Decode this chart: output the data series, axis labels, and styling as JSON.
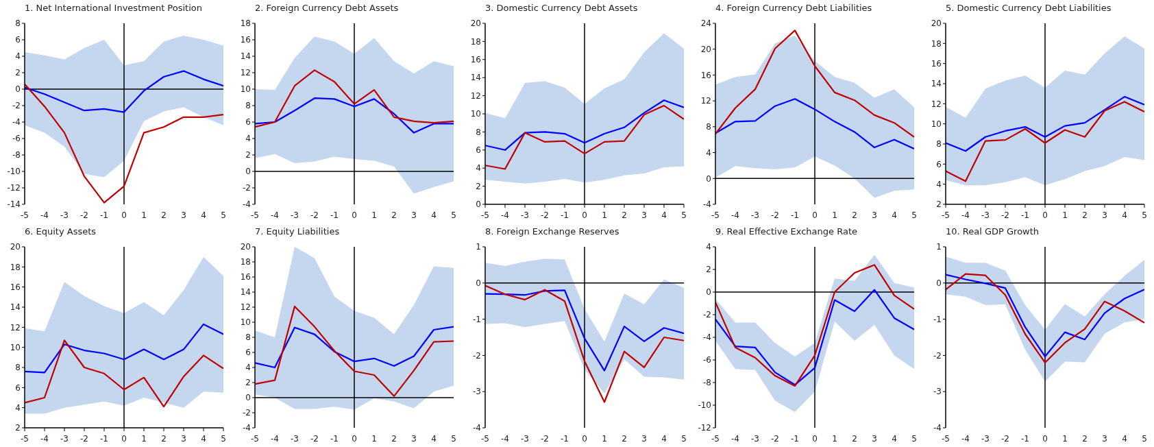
{
  "chart_data": [
    {
      "type": "line",
      "title": "1. Net International Investment Position",
      "x": [
        -5,
        -4,
        -3,
        -2,
        -1,
        0,
        1,
        2,
        3,
        4,
        5
      ],
      "xlim": [
        -5,
        5
      ],
      "xticks": [
        -5,
        -4,
        -3,
        -2,
        -1,
        0,
        1,
        2,
        3,
        4,
        5
      ],
      "ylim": [
        -14,
        8
      ],
      "yticks": [
        -14,
        -12,
        -10,
        -8,
        -6,
        -4,
        -2,
        0,
        2,
        4,
        6,
        8
      ],
      "grid": false,
      "marker": "none",
      "series": [
        {
          "color": "#0000ff",
          "values": [
            0.2,
            -0.6,
            -1.6,
            -2.6,
            -2.4,
            -2.8,
            -0.2,
            1.5,
            2.2,
            1.2,
            0.4
          ],
          "lower": [
            -4.4,
            -5.3,
            -7.0,
            -10.3,
            -10.7,
            -8.7,
            -3.9,
            -2.7,
            -2.2,
            -3.4,
            -4.4
          ],
          "upper": [
            4.5,
            4.1,
            3.6,
            5.0,
            6.0,
            2.9,
            3.4,
            5.8,
            6.5,
            6.0,
            5.3
          ]
        },
        {
          "color": "#c00000",
          "values": [
            0.6,
            -2.1,
            -5.3,
            -10.6,
            -13.8,
            -11.8,
            -5.3,
            -4.6,
            -3.4,
            -3.4,
            -3.1
          ]
        }
      ],
      "ref_lines": [
        {
          "axis": "x",
          "value": 0,
          "color": "#000000"
        },
        {
          "axis": "y",
          "value": 0,
          "color": "#000000"
        }
      ]
    },
    {
      "type": "line",
      "title": "2. Foreign Currency Debt Assets",
      "x": [
        -5,
        -4,
        -3,
        -2,
        -1,
        0,
        1,
        2,
        3,
        4,
        5
      ],
      "xlim": [
        -5,
        5
      ],
      "xticks": [
        -5,
        -4,
        -3,
        -2,
        -1,
        0,
        1,
        2,
        3,
        4,
        5
      ],
      "ylim": [
        -4,
        18
      ],
      "yticks": [
        -4,
        -2,
        0,
        2,
        4,
        6,
        8,
        10,
        12,
        14,
        16,
        18
      ],
      "grid": false,
      "marker": "none",
      "series": [
        {
          "color": "#0000ff",
          "values": [
            5.8,
            6.0,
            7.4,
            8.9,
            8.8,
            7.9,
            8.8,
            7.0,
            4.7,
            5.8,
            5.8
          ],
          "lower": [
            1.6,
            2.1,
            1.0,
            1.2,
            1.8,
            1.5,
            1.3,
            0.6,
            -2.7,
            -1.9,
            -1.2
          ],
          "upper": [
            10.0,
            9.9,
            13.8,
            16.4,
            15.8,
            14.3,
            16.2,
            13.4,
            11.9,
            13.4,
            12.8
          ]
        },
        {
          "color": "#c00000",
          "values": [
            5.4,
            6.0,
            10.4,
            12.3,
            10.9,
            8.2,
            9.9,
            6.6,
            6.1,
            5.9,
            6.1
          ]
        }
      ],
      "ref_lines": [
        {
          "axis": "x",
          "value": 0,
          "color": "#000000"
        },
        {
          "axis": "y",
          "value": 0,
          "color": "#000000"
        }
      ]
    },
    {
      "type": "line",
      "title": "3. Domestic Currency Debt Assets",
      "x": [
        -5,
        -4,
        -3,
        -2,
        -1,
        0,
        1,
        2,
        3,
        4,
        5
      ],
      "xlim": [
        -5,
        5
      ],
      "xticks": [
        -5,
        -4,
        -3,
        -2,
        -1,
        0,
        1,
        2,
        3,
        4,
        5
      ],
      "ylim": [
        0,
        20
      ],
      "yticks": [
        0,
        2,
        4,
        6,
        8,
        10,
        12,
        14,
        16,
        18,
        20
      ],
      "grid": false,
      "marker": "none",
      "series": [
        {
          "color": "#0000ff",
          "values": [
            6.5,
            6.0,
            7.9,
            8.0,
            7.8,
            6.8,
            7.8,
            8.5,
            10.1,
            11.5,
            10.7
          ],
          "lower": [
            2.7,
            2.5,
            2.3,
            2.5,
            2.8,
            2.4,
            2.7,
            3.2,
            3.4,
            4.1,
            4.2
          ],
          "upper": [
            10.1,
            9.5,
            13.4,
            13.6,
            12.9,
            11.1,
            12.8,
            13.8,
            16.8,
            18.9,
            17.2
          ]
        },
        {
          "color": "#c00000",
          "values": [
            4.3,
            3.9,
            7.9,
            6.9,
            7.0,
            5.6,
            6.9,
            7.0,
            9.9,
            10.9,
            9.4
          ]
        }
      ],
      "ref_lines": [
        {
          "axis": "x",
          "value": 0,
          "color": "#000000"
        }
      ]
    },
    {
      "type": "line",
      "title": "4. Foreign Currency Debt Liabilities",
      "x": [
        -5,
        -4,
        -3,
        -2,
        -1,
        0,
        1,
        2,
        3,
        4,
        5
      ],
      "xlim": [
        -5,
        5
      ],
      "xticks": [
        -5,
        -4,
        -3,
        -2,
        -1,
        0,
        1,
        2,
        3,
        4,
        5
      ],
      "ylim": [
        -4,
        24
      ],
      "yticks": [
        -4,
        0,
        4,
        8,
        12,
        16,
        20,
        24
      ],
      "grid": false,
      "marker": "none",
      "series": [
        {
          "color": "#0000ff",
          "values": [
            7.0,
            8.8,
            8.9,
            11.2,
            12.3,
            10.7,
            8.8,
            7.2,
            4.8,
            6.0,
            4.6
          ],
          "lower": [
            0.1,
            1.9,
            1.6,
            1.4,
            1.7,
            3.4,
            2.0,
            0.0,
            -3.0,
            -1.9,
            -1.7
          ],
          "upper": [
            14.5,
            15.7,
            16.1,
            20.9,
            22.1,
            18.2,
            15.7,
            14.8,
            12.5,
            13.8,
            11.0
          ]
        },
        {
          "color": "#c00000",
          "values": [
            6.9,
            10.9,
            13.8,
            20.1,
            22.9,
            17.4,
            13.3,
            12.1,
            9.8,
            8.6,
            6.4
          ]
        }
      ],
      "ref_lines": [
        {
          "axis": "x",
          "value": 0,
          "color": "#000000"
        },
        {
          "axis": "y",
          "value": 0,
          "color": "#000000"
        }
      ]
    },
    {
      "type": "line",
      "title": "5. Domestic Currency Debt Liabilities",
      "x": [
        -5,
        -4,
        -3,
        -2,
        -1,
        0,
        1,
        2,
        3,
        4,
        5
      ],
      "xlim": [
        -5,
        5
      ],
      "xticks": [
        -5,
        -4,
        -3,
        -2,
        -1,
        0,
        1,
        2,
        3,
        4,
        5
      ],
      "ylim": [
        2,
        20
      ],
      "yticks": [
        2,
        4,
        6,
        8,
        10,
        12,
        14,
        16,
        18,
        20
      ],
      "grid": false,
      "marker": "none",
      "series": [
        {
          "color": "#0000ff",
          "values": [
            8.1,
            7.3,
            8.7,
            9.3,
            9.7,
            8.7,
            9.8,
            10.1,
            11.4,
            12.7,
            11.9
          ],
          "lower": [
            4.4,
            3.9,
            3.9,
            4.2,
            4.7,
            3.9,
            4.5,
            5.3,
            5.8,
            6.7,
            6.4
          ],
          "upper": [
            11.7,
            10.6,
            13.5,
            14.3,
            14.8,
            13.6,
            15.3,
            14.9,
            17.0,
            18.7,
            17.5
          ]
        },
        {
          "color": "#c00000",
          "values": [
            5.3,
            4.3,
            8.3,
            8.4,
            9.5,
            8.1,
            9.4,
            8.7,
            11.3,
            12.2,
            11.2
          ]
        }
      ],
      "ref_lines": [
        {
          "axis": "x",
          "value": 0,
          "color": "#000000"
        }
      ]
    },
    {
      "type": "line",
      "title": "6. Equity Assets",
      "x": [
        -5,
        -4,
        -3,
        -2,
        -1,
        0,
        1,
        2,
        3,
        4,
        5
      ],
      "xlim": [
        -5,
        5
      ],
      "xticks": [
        -5,
        -4,
        -3,
        -2,
        -1,
        0,
        1,
        2,
        3,
        4,
        5
      ],
      "ylim": [
        2,
        20
      ],
      "yticks": [
        2,
        4,
        6,
        8,
        10,
        12,
        14,
        16,
        18,
        20
      ],
      "grid": false,
      "marker": "none",
      "series": [
        {
          "color": "#0000ff",
          "values": [
            7.6,
            7.5,
            10.3,
            9.7,
            9.4,
            8.8,
            9.8,
            8.8,
            9.8,
            12.3,
            11.3
          ],
          "lower": [
            3.4,
            3.4,
            4.0,
            4.3,
            4.6,
            4.2,
            5.0,
            4.5,
            4.0,
            5.6,
            5.5
          ],
          "upper": [
            11.9,
            11.6,
            16.5,
            15.1,
            14.1,
            13.4,
            14.5,
            13.2,
            15.7,
            19.0,
            17.1
          ]
        },
        {
          "color": "#c00000",
          "values": [
            4.5,
            5.0,
            10.7,
            8.0,
            7.4,
            5.8,
            7.0,
            4.1,
            7.1,
            9.2,
            7.9
          ]
        }
      ],
      "ref_lines": [
        {
          "axis": "x",
          "value": 0,
          "color": "#000000"
        }
      ]
    },
    {
      "type": "line",
      "title": "7. Equity Liabilities",
      "x": [
        -5,
        -4,
        -3,
        -2,
        -1,
        0,
        1,
        2,
        3,
        4,
        5
      ],
      "xlim": [
        -5,
        5
      ],
      "xticks": [
        -5,
        -4,
        -3,
        -2,
        -1,
        0,
        1,
        2,
        3,
        4,
        5
      ],
      "ylim": [
        -4,
        20
      ],
      "yticks": [
        -4,
        -2,
        0,
        2,
        4,
        6,
        8,
        10,
        12,
        14,
        16,
        18,
        20
      ],
      "grid": false,
      "marker": "none",
      "series": [
        {
          "color": "#0000ff",
          "values": [
            4.6,
            4.0,
            9.3,
            8.4,
            6.1,
            4.8,
            5.2,
            4.2,
            5.5,
            9.0,
            9.4
          ],
          "lower": [
            0.4,
            0.0,
            -1.5,
            -1.5,
            -1.2,
            -1.6,
            -0.1,
            -0.5,
            -1.4,
            0.8,
            1.6
          ],
          "upper": [
            8.9,
            8.0,
            20.0,
            18.5,
            13.4,
            11.5,
            10.6,
            8.4,
            12.3,
            17.4,
            17.2
          ]
        },
        {
          "color": "#c00000",
          "values": [
            1.8,
            2.3,
            12.1,
            9.4,
            6.2,
            3.5,
            3.0,
            0.2,
            3.6,
            7.4,
            7.5
          ]
        }
      ],
      "ref_lines": [
        {
          "axis": "x",
          "value": 0,
          "color": "#000000"
        },
        {
          "axis": "y",
          "value": 0,
          "color": "#000000"
        }
      ]
    },
    {
      "type": "line",
      "title": "8. Foreign Exchange Reserves",
      "x": [
        -5,
        -4,
        -3,
        -2,
        -1,
        0,
        1,
        2,
        3,
        4,
        5
      ],
      "xlim": [
        -5,
        5
      ],
      "xticks": [
        -5,
        -4,
        -3,
        -2,
        -1,
        0,
        1,
        2,
        3,
        4,
        5
      ],
      "ylim": [
        -4,
        1
      ],
      "yticks": [
        -4,
        -3,
        -2,
        -1,
        0,
        1
      ],
      "grid": false,
      "marker": "none",
      "series": [
        {
          "color": "#0000ff",
          "values": [
            -0.3,
            -0.31,
            -0.33,
            -0.22,
            -0.2,
            -1.53,
            -2.42,
            -1.2,
            -1.61,
            -1.24,
            -1.39
          ],
          "lower": [
            -1.13,
            -1.11,
            -1.22,
            -1.13,
            -1.05,
            -2.39,
            -3.05,
            -2.11,
            -2.59,
            -2.61,
            -2.67
          ],
          "upper": [
            0.56,
            0.47,
            0.59,
            0.67,
            0.65,
            -0.72,
            -1.62,
            -0.29,
            -0.59,
            0.1,
            -0.13
          ]
        },
        {
          "color": "#c00000",
          "values": [
            -0.07,
            -0.31,
            -0.46,
            -0.19,
            -0.5,
            -2.16,
            -3.29,
            -1.89,
            -2.33,
            -1.5,
            -1.59
          ]
        }
      ],
      "ref_lines": [
        {
          "axis": "x",
          "value": 0,
          "color": "#000000"
        },
        {
          "axis": "y",
          "value": 0,
          "color": "#000000"
        }
      ]
    },
    {
      "type": "line",
      "title": "9. Real Effective Exchange Rate",
      "x": [
        -5,
        -4,
        -3,
        -2,
        -1,
        0,
        1,
        2,
        3,
        4,
        5
      ],
      "xlim": [
        -5,
        5
      ],
      "xticks": [
        -5,
        -4,
        -3,
        -2,
        -1,
        0,
        1,
        2,
        3,
        4,
        5
      ],
      "ylim": [
        -12,
        4
      ],
      "yticks": [
        -12,
        -10,
        -8,
        -6,
        -4,
        -2,
        0,
        2,
        4
      ],
      "grid": false,
      "marker": "none",
      "series": [
        {
          "color": "#0000ff",
          "values": [
            -2.4,
            -4.8,
            -4.9,
            -7.1,
            -8.2,
            -6.7,
            -0.7,
            -1.7,
            0.2,
            -2.3,
            -3.3
          ],
          "lower": [
            -4.3,
            -6.8,
            -6.9,
            -9.6,
            -10.6,
            -8.8,
            -2.6,
            -4.3,
            -2.9,
            -5.6,
            -6.8
          ],
          "upper": [
            -0.6,
            -2.7,
            -2.7,
            -4.5,
            -5.7,
            -4.5,
            1.2,
            1.0,
            3.3,
            0.8,
            0.4
          ]
        },
        {
          "color": "#c00000",
          "values": [
            -0.9,
            -4.9,
            -5.8,
            -7.4,
            -8.3,
            -5.6,
            0.0,
            1.7,
            2.4,
            -0.3,
            -1.5
          ]
        }
      ],
      "ref_lines": [
        {
          "axis": "x",
          "value": 0,
          "color": "#000000"
        },
        {
          "axis": "y",
          "value": 0,
          "color": "#000000"
        }
      ]
    },
    {
      "type": "line",
      "title": "10. Real GDP Growth",
      "x": [
        -5,
        -4,
        -3,
        -2,
        -1,
        0,
        1,
        2,
        3,
        4,
        5
      ],
      "xlim": [
        -5,
        5
      ],
      "xticks": [
        -5,
        -4,
        -3,
        -2,
        -1,
        0,
        1,
        2,
        3,
        4,
        5
      ],
      "ylim": [
        -4,
        1
      ],
      "yticks": [
        -4,
        -3,
        -2,
        -1,
        0,
        1
      ],
      "grid": false,
      "marker": "none",
      "series": [
        {
          "color": "#0000ff",
          "values": [
            0.23,
            0.1,
            -0.01,
            -0.14,
            -1.22,
            -2.03,
            -1.36,
            -1.56,
            -0.83,
            -0.43,
            -0.18
          ],
          "lower": [
            -0.31,
            -0.38,
            -0.61,
            -0.59,
            -1.84,
            -2.72,
            -2.17,
            -2.19,
            -1.4,
            -1.09,
            -1.0
          ],
          "upper": [
            0.73,
            0.56,
            0.56,
            0.34,
            -0.61,
            -1.29,
            -0.58,
            -0.92,
            -0.31,
            0.2,
            0.64
          ]
        },
        {
          "color": "#c00000",
          "values": [
            -0.18,
            0.25,
            0.21,
            -0.33,
            -1.41,
            -2.2,
            -1.65,
            -1.27,
            -0.51,
            -0.77,
            -1.1
          ]
        }
      ],
      "ref_lines": [
        {
          "axis": "x",
          "value": 0,
          "color": "#000000"
        },
        {
          "axis": "y",
          "value": 0,
          "color": "#000000"
        }
      ]
    }
  ]
}
